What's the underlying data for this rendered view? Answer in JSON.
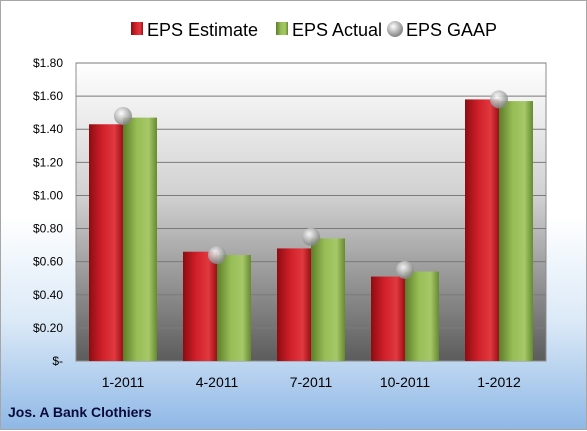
{
  "chart_data": {
    "type": "bar",
    "caption": "Jos. A Bank Clothiers",
    "categories": [
      "1-2011",
      "4-2011",
      "7-2011",
      "10-2011",
      "1-2012"
    ],
    "series": [
      {
        "name": "EPS Estimate",
        "kind": "bar",
        "color": "#c8102e",
        "values": [
          1.43,
          0.66,
          0.68,
          0.51,
          1.58
        ]
      },
      {
        "name": "EPS Actual",
        "kind": "bar",
        "color": "#8db54a",
        "values": [
          1.47,
          0.64,
          0.74,
          0.54,
          1.57
        ]
      },
      {
        "name": "EPS GAAP",
        "kind": "marker",
        "color": "#b9b9b9",
        "values": [
          1.48,
          0.64,
          0.75,
          0.55,
          1.58
        ]
      }
    ],
    "y_ticks": [
      "$-",
      "$0.20",
      "$0.40",
      "$0.60",
      "$0.80",
      "$1.00",
      "$1.20",
      "$1.40",
      "$1.60",
      "$1.80"
    ],
    "ylim": [
      0,
      1.8
    ],
    "grid": true,
    "legend_position": "top"
  }
}
